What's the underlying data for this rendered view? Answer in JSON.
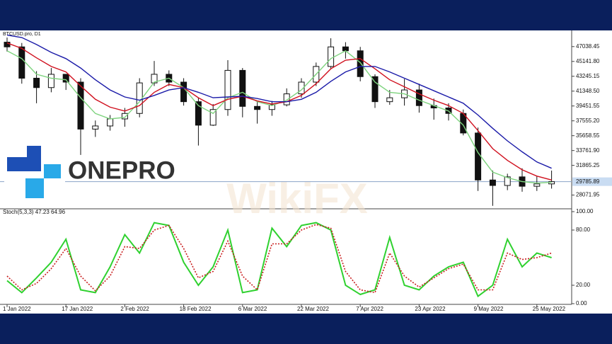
{
  "branding": {
    "logo": "ONEPRO",
    "watermark": "WikiFX"
  },
  "chart_data": [
    {
      "type": "candlestick",
      "title": "BTCUSD.pro, D1",
      "categories": [
        "1 Jan 2022",
        null,
        null,
        null,
        "17 Jan 2022",
        null,
        null,
        null,
        "2 Feb 2022",
        null,
        null,
        null,
        "18 Feb 2022",
        null,
        null,
        null,
        "6 Mar 2022",
        null,
        null,
        null,
        "22 Mar 2022",
        null,
        null,
        null,
        "7 Apr 2022",
        null,
        null,
        null,
        "23 Apr 2022",
        null,
        null,
        null,
        "9 May 2022",
        null,
        null,
        null,
        "25 May 2022",
        null
      ],
      "open": [
        47600,
        47000,
        43000,
        41800,
        43500,
        42500,
        36500,
        36900,
        37800,
        38500,
        42400,
        43500,
        42500,
        40000,
        37000,
        39000,
        44000,
        39400,
        39000,
        39600,
        41000,
        42500,
        44500,
        47000,
        46500,
        43200,
        40000,
        40500,
        41500,
        39500,
        39200,
        38500,
        36000,
        30000,
        29300,
        30400,
        29200,
        29500
      ],
      "high": [
        48200,
        47500,
        43900,
        44300,
        43500,
        43000,
        37600,
        38300,
        39200,
        43000,
        45200,
        44000,
        43000,
        40500,
        39700,
        45300,
        44300,
        40000,
        40100,
        41700,
        43000,
        45000,
        48100,
        47600,
        47000,
        43500,
        41500,
        42900,
        42300,
        40400,
        39800,
        39000,
        36700,
        31200,
        30800,
        31500,
        30500,
        31200
      ],
      "low": [
        46400,
        42300,
        39800,
        41200,
        41500,
        33200,
        35500,
        36300,
        36800,
        38000,
        42000,
        42000,
        39500,
        34400,
        36900,
        38200,
        38000,
        37200,
        38200,
        39400,
        40500,
        42000,
        44200,
        45500,
        42600,
        39200,
        39600,
        39500,
        38600,
        37700,
        37600,
        35700,
        28600,
        26700,
        28700,
        28500,
        28600,
        28900
      ],
      "close": [
        47000,
        43000,
        41800,
        43500,
        42500,
        36500,
        36900,
        37800,
        38500,
        42400,
        43500,
        42500,
        40000,
        37000,
        39000,
        44000,
        39400,
        39000,
        39600,
        41000,
        42500,
        44500,
        47000,
        46500,
        43200,
        40000,
        40500,
        41500,
        39500,
        39200,
        38500,
        36000,
        30000,
        29300,
        30400,
        29200,
        29500,
        29786
      ],
      "up_color": "#111111",
      "down_color": "#111111",
      "series": [
        {
          "color": "#7ed37e",
          "values": [
            46500,
            45500,
            43500,
            43000,
            42800,
            40500,
            38500,
            37800,
            38000,
            40000,
            42500,
            43000,
            41800,
            39500,
            38500,
            40500,
            41200,
            40000,
            39500,
            40200,
            41500,
            43500,
            45500,
            46500,
            45000,
            42500,
            41200,
            41000,
            40200,
            39500,
            38800,
            37000,
            33500,
            31000,
            30300,
            29800,
            29600,
            29700
          ]
        },
        {
          "color": "#d0101e",
          "values": [
            47500,
            46800,
            45600,
            44500,
            43800,
            42000,
            40300,
            39300,
            38800,
            39500,
            41200,
            42200,
            41800,
            40500,
            39500,
            40300,
            40700,
            40100,
            39700,
            40000,
            40800,
            42300,
            44200,
            45300,
            45500,
            44200,
            42800,
            41900,
            41000,
            40200,
            39500,
            38500,
            36300,
            34000,
            32500,
            31300,
            30500,
            30000
          ]
        },
        {
          "color": "#1a1aa8",
          "values": [
            48500,
            48200,
            47300,
            46300,
            45500,
            44300,
            42800,
            41500,
            40600,
            40200,
            40800,
            41500,
            41800,
            41200,
            40500,
            40600,
            40700,
            40400,
            40000,
            40000,
            40300,
            41200,
            42600,
            43800,
            44500,
            44500,
            43800,
            43000,
            42200,
            41400,
            40600,
            39800,
            38300,
            36600,
            35000,
            33600,
            32300,
            31500
          ]
        }
      ],
      "last_price": 29785.89,
      "ylim": [
        26500,
        49100
      ],
      "yticks": [
        47038.45,
        {
          "value": 45141.8,
          "label": "45141.80"
        },
        43245.15,
        {
          "value": 41348.5,
          "label": "41348.50"
        },
        39451.55,
        {
          "value": 37555.2,
          "label": "37555.20"
        },
        35658.55,
        {
          "value": 33761.9,
          "label": "33761.90"
        },
        31865.25,
        28071.95
      ]
    },
    {
      "type": "line",
      "title": "Stoch(5,3,3) 47.23 64.96",
      "series": [
        {
          "color": "#2fd12f",
          "style": "solid",
          "values": [
            25,
            12,
            28,
            45,
            70,
            15,
            12,
            40,
            75,
            55,
            88,
            85,
            45,
            20,
            40,
            80,
            12,
            15,
            82,
            62,
            85,
            88,
            80,
            20,
            10,
            15,
            72,
            20,
            15,
            30,
            40,
            45,
            8,
            20,
            70,
            40,
            55,
            50
          ]
        },
        {
          "color": "#c81e1e",
          "style": "dotted",
          "values": [
            30,
            15,
            22,
            38,
            60,
            30,
            14,
            30,
            62,
            60,
            80,
            85,
            60,
            28,
            35,
            68,
            30,
            15,
            65,
            65,
            80,
            86,
            82,
            35,
            15,
            12,
            55,
            30,
            18,
            28,
            38,
            43,
            15,
            15,
            55,
            48,
            50,
            55
          ]
        }
      ],
      "ylim": [
        0,
        100
      ],
      "yticks": [
        {
          "value": 100,
          "label": "100.00"
        },
        {
          "value": 80,
          "label": "80.00"
        },
        {
          "value": 20,
          "label": "20.00"
        },
        {
          "value": 0,
          "label": "0.00"
        }
      ]
    }
  ]
}
